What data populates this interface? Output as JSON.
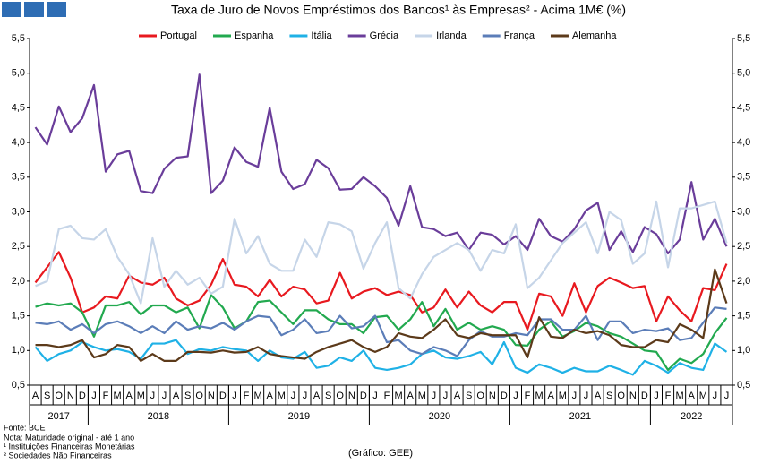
{
  "chart_data": {
    "type": "line",
    "title": "Taxa de Juro de Novos Empréstimos dos Bancos¹ às Empresas² - Acima 1M€ (%)",
    "categories": [
      "A",
      "S",
      "O",
      "N",
      "D",
      "J",
      "F",
      "M",
      "A",
      "M",
      "J",
      "J",
      "A",
      "S",
      "O",
      "N",
      "D",
      "J",
      "F",
      "M",
      "A",
      "M",
      "J",
      "J",
      "A",
      "S",
      "O",
      "N",
      "D",
      "J",
      "F",
      "M",
      "A",
      "M",
      "J",
      "J",
      "A",
      "S",
      "O",
      "N",
      "D",
      "J",
      "F",
      "M",
      "A",
      "M",
      "J",
      "J",
      "A",
      "S",
      "O",
      "N",
      "D",
      "J",
      "F",
      "M",
      "A",
      "M",
      "J",
      "J"
    ],
    "years": [
      "2017",
      "2018",
      "2019",
      "2020",
      "2021",
      "2022"
    ],
    "ylim": [
      0.5,
      5.5
    ],
    "yticks": [
      {
        "value": 0.5,
        "label": "0,5"
      },
      {
        "value": 1.0,
        "label": "1,0"
      },
      {
        "value": 1.5,
        "label": "1,5"
      },
      {
        "value": 2.0,
        "label": "2,0"
      },
      {
        "value": 2.5,
        "label": "2,5"
      },
      {
        "value": 3.0,
        "label": "3,0"
      },
      {
        "value": 3.5,
        "label": "3,5"
      },
      {
        "value": 4.0,
        "label": "4,0"
      },
      {
        "value": 4.5,
        "label": "4,5"
      },
      {
        "value": 5.0,
        "label": "5,0"
      },
      {
        "value": 5.5,
        "label": "5,5"
      }
    ],
    "grid": false,
    "legend": "top",
    "series": [
      {
        "name": "Portugal",
        "color": "#e8191f",
        "values": [
          1.98,
          2.2,
          2.42,
          2.05,
          1.55,
          1.62,
          1.78,
          1.75,
          2.08,
          1.98,
          1.95,
          2.05,
          1.75,
          1.65,
          1.72,
          1.95,
          2.32,
          1.95,
          1.92,
          1.78,
          2.02,
          1.78,
          1.92,
          1.88,
          1.68,
          1.72,
          2.12,
          1.75,
          1.85,
          1.9,
          1.8,
          1.85,
          1.8,
          1.55,
          1.62,
          1.88,
          1.62,
          1.85,
          1.65,
          1.55,
          1.7,
          1.7,
          1.3,
          1.82,
          1.78,
          1.5,
          1.97,
          1.55,
          1.93,
          2.05,
          1.98,
          1.9,
          1.93,
          1.42,
          1.78,
          1.58,
          1.42,
          1.9,
          1.87,
          2.25
        ]
      },
      {
        "name": "Espanha",
        "color": "#22a94f",
        "values": [
          1.63,
          1.68,
          1.65,
          1.68,
          1.55,
          1.2,
          1.65,
          1.65,
          1.7,
          1.52,
          1.65,
          1.65,
          1.55,
          1.62,
          1.32,
          1.8,
          1.62,
          1.32,
          1.42,
          1.7,
          1.72,
          1.55,
          1.38,
          1.58,
          1.58,
          1.45,
          1.38,
          1.38,
          1.25,
          1.48,
          1.5,
          1.3,
          1.45,
          1.7,
          1.35,
          1.6,
          1.3,
          1.4,
          1.3,
          1.35,
          1.3,
          1.08,
          1.07,
          1.3,
          1.42,
          1.2,
          1.28,
          1.4,
          1.35,
          1.25,
          1.2,
          1.1,
          1.0,
          0.98,
          0.72,
          0.88,
          0.82,
          0.95,
          1.25,
          1.47
        ]
      },
      {
        "name": "Itália",
        "color": "#1fb1e6",
        "values": [
          1.05,
          0.85,
          0.95,
          1.0,
          1.12,
          1.05,
          1.0,
          1.02,
          0.98,
          0.88,
          1.1,
          1.1,
          1.15,
          0.95,
          1.02,
          1.0,
          1.05,
          1.02,
          1.0,
          0.85,
          1.0,
          0.9,
          0.88,
          0.98,
          0.75,
          0.78,
          0.9,
          0.85,
          1.0,
          0.75,
          0.72,
          0.75,
          0.8,
          0.95,
          1.0,
          0.9,
          0.88,
          0.92,
          0.98,
          0.8,
          1.12,
          0.75,
          0.68,
          0.8,
          0.75,
          0.68,
          0.75,
          0.7,
          0.7,
          0.78,
          0.72,
          0.65,
          0.85,
          0.78,
          0.68,
          0.82,
          0.75,
          0.72,
          1.1,
          0.98
        ]
      },
      {
        "name": "Grécia",
        "color": "#6a3d9a",
        "values": [
          4.22,
          3.97,
          4.52,
          4.15,
          4.35,
          4.83,
          3.58,
          3.83,
          3.88,
          3.3,
          3.27,
          3.62,
          3.78,
          3.8,
          4.98,
          3.27,
          3.45,
          3.93,
          3.72,
          3.65,
          4.5,
          3.58,
          3.33,
          3.4,
          3.75,
          3.63,
          3.32,
          3.33,
          3.5,
          3.37,
          3.2,
          2.8,
          3.37,
          2.78,
          2.75,
          2.65,
          2.7,
          2.45,
          2.7,
          2.67,
          2.53,
          2.65,
          2.45,
          2.9,
          2.65,
          2.57,
          2.75,
          3.02,
          3.13,
          2.45,
          2.72,
          2.42,
          2.78,
          2.68,
          2.4,
          2.6,
          3.43,
          2.6,
          2.9,
          2.5
        ]
      },
      {
        "name": "Irlanda",
        "color": "#c6d5e8",
        "values": [
          1.93,
          2.0,
          2.75,
          2.8,
          2.62,
          2.6,
          2.75,
          2.35,
          2.1,
          1.68,
          2.62,
          1.92,
          2.15,
          1.95,
          2.05,
          1.82,
          1.92,
          2.9,
          2.4,
          2.65,
          2.25,
          2.15,
          2.15,
          2.6,
          2.35,
          2.85,
          2.82,
          2.72,
          2.18,
          2.55,
          2.85,
          1.9,
          1.75,
          2.1,
          2.35,
          2.45,
          2.55,
          2.45,
          2.15,
          2.45,
          2.4,
          2.82,
          1.9,
          2.05,
          2.3,
          2.55,
          2.7,
          2.85,
          2.4,
          3.0,
          2.88,
          2.25,
          2.4,
          3.15,
          2.2,
          3.05,
          3.05,
          3.1,
          3.15,
          2.55
        ]
      },
      {
        "name": "França",
        "color": "#5b7db8",
        "values": [
          1.4,
          1.38,
          1.42,
          1.3,
          1.38,
          1.25,
          1.38,
          1.42,
          1.35,
          1.25,
          1.35,
          1.25,
          1.42,
          1.3,
          1.35,
          1.32,
          1.4,
          1.3,
          1.42,
          1.5,
          1.48,
          1.22,
          1.3,
          1.45,
          1.25,
          1.28,
          1.5,
          1.32,
          1.35,
          1.5,
          1.12,
          1.15,
          1.0,
          0.95,
          1.05,
          1.0,
          0.92,
          1.15,
          1.28,
          1.2,
          1.2,
          1.25,
          1.22,
          1.45,
          1.45,
          1.3,
          1.3,
          1.5,
          1.15,
          1.42,
          1.42,
          1.25,
          1.3,
          1.28,
          1.32,
          1.15,
          1.18,
          1.4,
          1.62,
          1.6
        ]
      },
      {
        "name": "Alemanha",
        "color": "#5c3a1a",
        "values": [
          1.08,
          1.08,
          1.05,
          1.08,
          1.15,
          0.9,
          0.95,
          1.08,
          1.05,
          0.85,
          0.95,
          0.85,
          0.85,
          0.98,
          0.98,
          0.97,
          1.0,
          0.97,
          0.98,
          1.05,
          0.95,
          0.92,
          0.9,
          0.88,
          0.98,
          1.05,
          1.1,
          1.15,
          1.05,
          0.98,
          1.05,
          1.25,
          1.2,
          1.18,
          1.3,
          1.45,
          1.22,
          1.18,
          1.25,
          1.22,
          1.22,
          1.22,
          0.9,
          1.48,
          1.2,
          1.18,
          1.3,
          1.25,
          1.28,
          1.22,
          1.08,
          1.05,
          1.05,
          1.15,
          1.12,
          1.38,
          1.3,
          1.18,
          2.17,
          1.68
        ]
      }
    ]
  },
  "notes": [
    "Fonte: BCE",
    "Nota: Maturidade original - até 1 ano",
    "¹ Instituições Financeiras Monetárias",
    "² Sociedades Não Financeiras"
  ],
  "credit": "(Gráfico: GEE)"
}
